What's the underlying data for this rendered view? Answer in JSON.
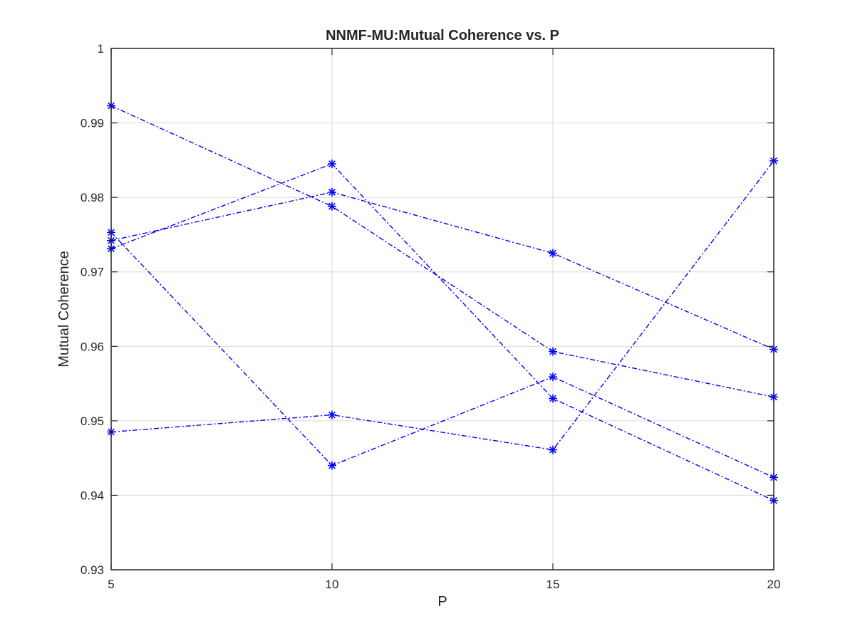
{
  "chart_data": {
    "type": "line",
    "title": "NNMF-MU:Mutual Coherence vs. P",
    "xlabel": "P",
    "ylabel": "Mutual Coherence",
    "x": [
      5,
      10,
      15,
      20
    ],
    "xlim": [
      5,
      20
    ],
    "ylim": [
      0.93,
      1
    ],
    "xticks": [
      5,
      10,
      15,
      20
    ],
    "xtick_labels": [
      "5",
      "10",
      "15",
      "20"
    ],
    "yticks": [
      0.93,
      0.94,
      0.95,
      0.96,
      0.97,
      0.98,
      0.99,
      1
    ],
    "ytick_labels": [
      "0.93",
      "0.94",
      "0.95",
      "0.96",
      "0.97",
      "0.98",
      "0.99",
      "1"
    ],
    "grid": true,
    "line_style": "dash-dot",
    "marker": "asterisk",
    "color": "#0000ff",
    "series": [
      {
        "values": [
          0.9923,
          0.9788,
          0.9593,
          0.9532
        ]
      },
      {
        "values": [
          0.9753,
          0.944,
          0.9559,
          0.9424
        ]
      },
      {
        "values": [
          0.9742,
          0.9807,
          0.9725,
          0.9596
        ]
      },
      {
        "values": [
          0.9731,
          0.9845,
          0.953,
          0.9393
        ]
      },
      {
        "values": [
          0.9485,
          0.9508,
          0.9461,
          0.9849
        ]
      }
    ]
  }
}
